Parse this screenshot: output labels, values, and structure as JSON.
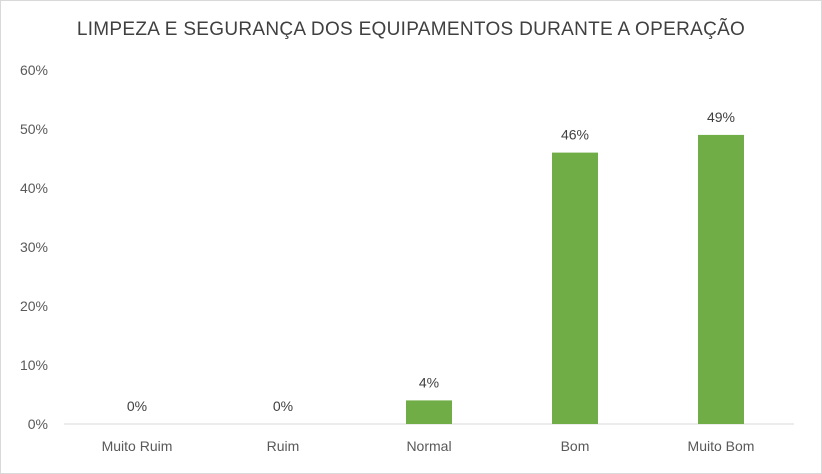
{
  "chart_data": {
    "type": "bar",
    "title": "LIMPEZA E SEGURANÇA DOS EQUIPAMENTOS DURANTE A OPERAÇÃO",
    "categories": [
      "Muito Ruim",
      "Ruim",
      "Normal",
      "Bom",
      "Muito Bom"
    ],
    "values": [
      0,
      0,
      4,
      46,
      49
    ],
    "data_labels": [
      "0%",
      "0%",
      "4%",
      "46%",
      "49%"
    ],
    "ylim": [
      0,
      60
    ],
    "y_ticks": [
      0,
      10,
      20,
      30,
      40,
      50,
      60
    ],
    "y_tick_labels": [
      "0%",
      "10%",
      "20%",
      "30%",
      "40%",
      "50%",
      "60%"
    ],
    "xlabel": "",
    "ylabel": "",
    "grid": false,
    "legend": false,
    "bar_color": "#70ad47"
  }
}
